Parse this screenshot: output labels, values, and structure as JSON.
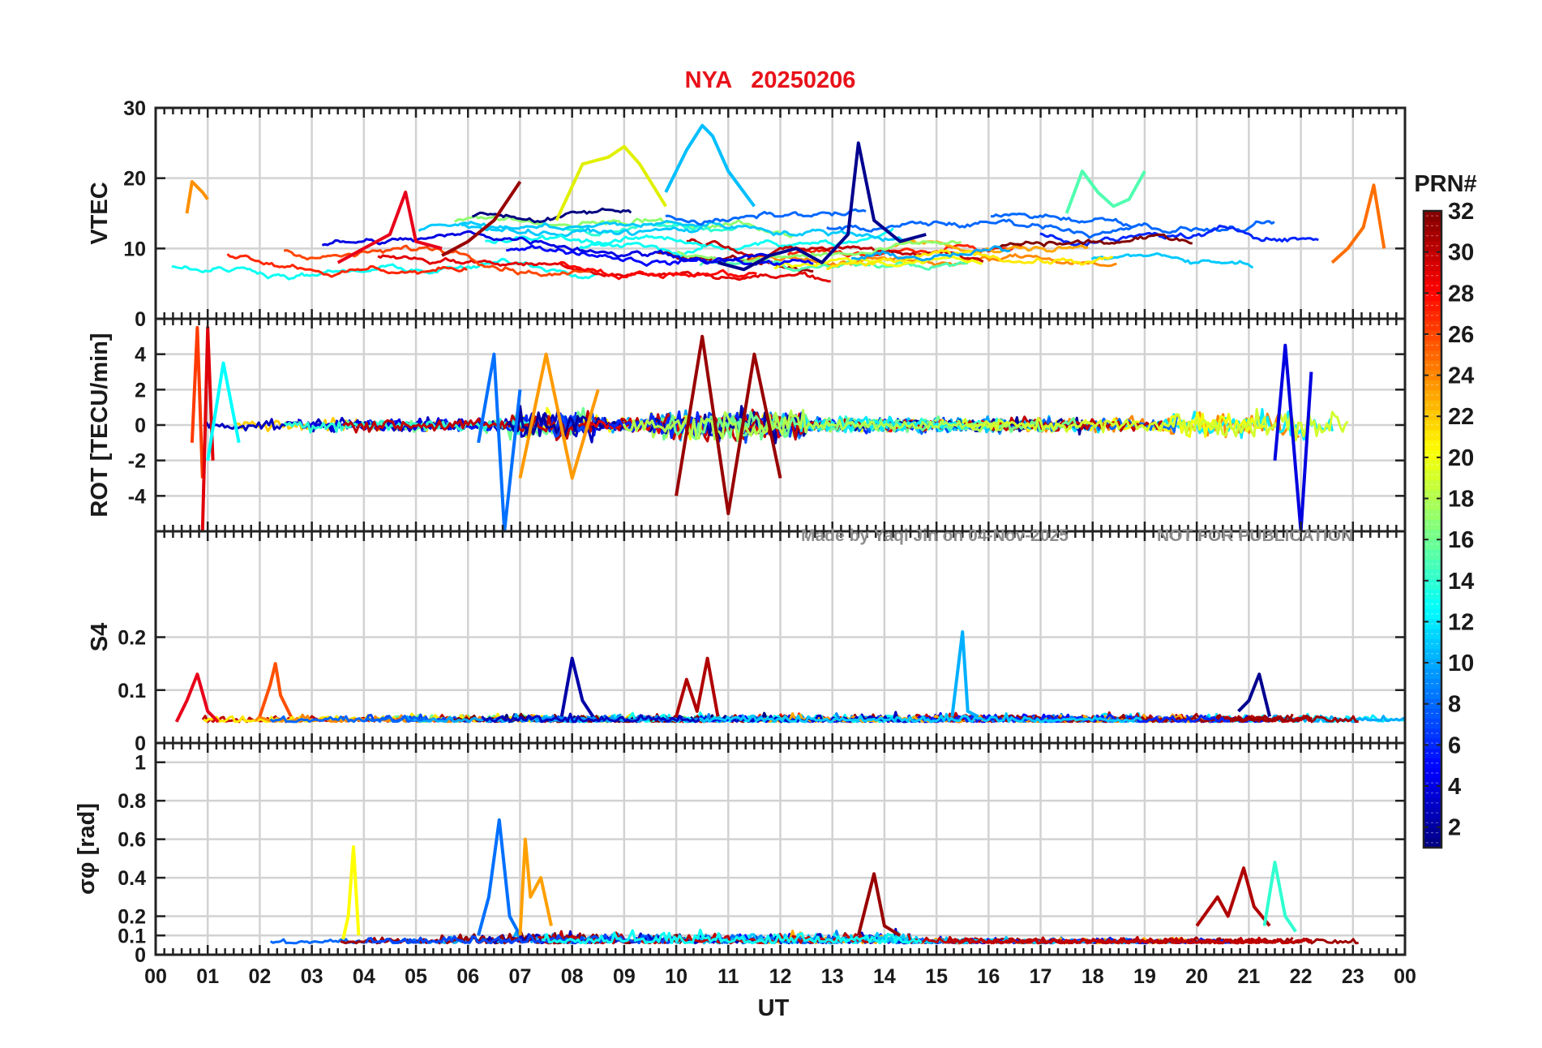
{
  "title": "NYA   20250206",
  "watermark": {
    "made_by": "Made by Yaqi Jin on 04-Nov-2025",
    "notice": "NOT FOR PUBLICATION"
  },
  "chart_data": {
    "type": "line",
    "title": "NYA   20250206",
    "xlabel": "UT",
    "xlim": [
      0,
      24
    ],
    "x_tick_labels": [
      "00",
      "01",
      "02",
      "03",
      "04",
      "05",
      "06",
      "07",
      "08",
      "09",
      "10",
      "11",
      "12",
      "13",
      "14",
      "15",
      "16",
      "17",
      "18",
      "19",
      "20",
      "21",
      "22",
      "23",
      "00"
    ],
    "grid": true,
    "colormap": "jet",
    "colorbar": {
      "label": "PRN#",
      "range": [
        1,
        32
      ],
      "tick_labels": [
        "2",
        "4",
        "6",
        "8",
        "10",
        "12",
        "14",
        "16",
        "18",
        "20",
        "22",
        "24",
        "26",
        "28",
        "30",
        "32"
      ],
      "placement": "right"
    },
    "series_color_by": "PRN",
    "panels": [
      {
        "id": "vtec",
        "ylabel": "VTEC",
        "ylim": [
          0,
          30
        ],
        "y_tick_labels": [
          "0",
          "10",
          "20",
          "30"
        ],
        "series": [
          {
            "prn": 1,
            "color": "#00008f",
            "x": [
              10.8,
              11.3,
              11.8,
              12.3,
              12.8,
              13.3,
              13.5,
              13.8,
              14.3,
              14.8
            ],
            "y": [
              8,
              7,
              9,
              10,
              8,
              12,
              25,
              14,
              11,
              12
            ]
          },
          {
            "prn": 9,
            "color": "#00bfff",
            "x": [
              9.8,
              10.2,
              10.5,
              10.7,
              11.0,
              11.5
            ],
            "y": [
              18,
              24,
              27.5,
              26,
              21,
              16
            ]
          },
          {
            "prn": 19,
            "color": "#e0f000",
            "x": [
              7.7,
              8.2,
              8.7,
              9.0,
              9.3,
              9.8
            ],
            "y": [
              14,
              22,
              23,
              24.5,
              22,
              16
            ]
          },
          {
            "prn": 23,
            "color": "#ff9000",
            "x": [
              0.6,
              0.7,
              0.9,
              1.0
            ],
            "y": [
              15,
              19.5,
              18,
              17
            ]
          },
          {
            "prn": 27,
            "color": "#e8001a",
            "x": [
              3.5,
              4.0,
              4.5,
              4.8,
              5.0,
              5.5
            ],
            "y": [
              8,
              10,
              12,
              18,
              11,
              10
            ]
          },
          {
            "prn": 31,
            "color": "#990000",
            "x": [
              5.5,
              6.0,
              6.5,
              7.0
            ],
            "y": [
              9,
              11,
              14,
              19.5
            ]
          },
          {
            "prn": 15,
            "color": "#50ffb0",
            "x": [
              17.5,
              17.8,
              18.1,
              18.4,
              18.7,
              19.0
            ],
            "y": [
              15,
              21,
              18,
              16,
              17,
              21
            ]
          },
          {
            "prn": 24,
            "color": "#ff6e00",
            "x": [
              22.6,
              22.9,
              23.2,
              23.4,
              23.6
            ],
            "y": [
              8,
              10,
              13,
              19,
              10
            ]
          }
        ]
      },
      {
        "id": "rot",
        "ylabel": "ROT [TECU/min]",
        "ylim": [
          -6,
          6
        ],
        "y_tick_labels": [
          "-4",
          "-2",
          "0",
          "2",
          "4"
        ],
        "series": [
          {
            "prn": 26,
            "color": "#ff3a00",
            "x": [
              0.7,
              0.8,
              0.9
            ],
            "y": [
              -1,
              5.5,
              -3
            ]
          },
          {
            "prn": 28,
            "color": "#e0000a",
            "x": [
              0.9,
              1.0,
              1.1
            ],
            "y": [
              -6,
              5.5,
              -2
            ]
          },
          {
            "prn": 11,
            "color": "#00ffff",
            "x": [
              1.0,
              1.3,
              1.6
            ],
            "y": [
              -2,
              3.5,
              -1
            ]
          },
          {
            "prn": 22,
            "color": "#ff9a00",
            "x": [
              7.0,
              7.5,
              8.0,
              8.5
            ],
            "y": [
              -3,
              4,
              -3,
              2
            ]
          },
          {
            "prn": 31,
            "color": "#990000",
            "x": [
              10.0,
              10.5,
              11.0,
              11.5,
              12.0
            ],
            "y": [
              -4,
              5,
              -5,
              4,
              -3
            ]
          },
          {
            "prn": 8,
            "color": "#0070ff",
            "x": [
              6.2,
              6.5,
              6.7,
              7.0
            ],
            "y": [
              -1,
              4,
              -6,
              2
            ]
          },
          {
            "prn": 4,
            "color": "#0000e0",
            "x": [
              21.5,
              21.7,
              22.0,
              22.2
            ],
            "y": [
              -2,
              4.5,
              -6,
              3
            ]
          }
        ]
      },
      {
        "id": "s4",
        "ylabel": "S4",
        "ylim": [
          0,
          0.4
        ],
        "y_tick_labels": [
          "0",
          "0.1",
          "0.2"
        ],
        "series": [
          {
            "prn": 27,
            "color": "#e8001a",
            "x": [
              0.4,
              0.6,
              0.8,
              1.0,
              1.2
            ],
            "y": [
              0.04,
              0.08,
              0.13,
              0.06,
              0.04
            ]
          },
          {
            "prn": 25,
            "color": "#ff5000",
            "x": [
              2.0,
              2.2,
              2.3,
              2.4,
              2.6
            ],
            "y": [
              0.05,
              0.11,
              0.15,
              0.09,
              0.05
            ]
          },
          {
            "prn": 3,
            "color": "#0000a8",
            "x": [
              7.8,
              8.0,
              8.2,
              8.4
            ],
            "y": [
              0.05,
              0.16,
              0.08,
              0.05
            ]
          },
          {
            "prn": 9,
            "color": "#00b0ff",
            "x": [
              15.3,
              15.5,
              15.6,
              15.8
            ],
            "y": [
              0.05,
              0.21,
              0.06,
              0.05
            ]
          },
          {
            "prn": 2,
            "color": "#000090",
            "x": [
              20.8,
              21.0,
              21.2,
              21.4
            ],
            "y": [
              0.06,
              0.08,
              0.13,
              0.05
            ]
          },
          {
            "prn": 30,
            "color": "#b00000",
            "x": [
              10.0,
              10.2,
              10.4,
              10.6,
              10.8
            ],
            "y": [
              0.05,
              0.12,
              0.06,
              0.16,
              0.05
            ]
          }
        ]
      },
      {
        "id": "sigma_phi",
        "ylabel": "σφ [rad]",
        "ylim": [
          0,
          1.1
        ],
        "y_tick_labels": [
          "0",
          "0.1",
          "0.2",
          "0.4",
          "0.6",
          "0.8",
          "1"
        ],
        "series": [
          {
            "prn": 8,
            "color": "#0070ff",
            "x": [
              6.2,
              6.4,
              6.6,
              6.8,
              7.0
            ],
            "y": [
              0.1,
              0.3,
              0.7,
              0.2,
              0.1
            ]
          },
          {
            "prn": 19,
            "color": "#ffff00",
            "x": [
              3.6,
              3.7,
              3.8,
              3.9
            ],
            "y": [
              0.08,
              0.2,
              0.56,
              0.1
            ]
          },
          {
            "prn": 22,
            "color": "#ffa000",
            "x": [
              7.0,
              7.1,
              7.2,
              7.4,
              7.6
            ],
            "y": [
              0.1,
              0.6,
              0.3,
              0.4,
              0.15
            ]
          },
          {
            "prn": 31,
            "color": "#990000",
            "x": [
              13.5,
              13.8,
              14.0,
              14.3
            ],
            "y": [
              0.1,
              0.42,
              0.15,
              0.1
            ]
          },
          {
            "prn": 30,
            "color": "#b00000",
            "x": [
              20.0,
              20.4,
              20.6,
              20.9,
              21.1,
              21.4
            ],
            "y": [
              0.15,
              0.3,
              0.2,
              0.45,
              0.25,
              0.15
            ]
          },
          {
            "prn": 14,
            "color": "#30ffd0",
            "x": [
              21.3,
              21.5,
              21.7,
              21.9
            ],
            "y": [
              0.15,
              0.48,
              0.2,
              0.12
            ]
          }
        ]
      }
    ]
  }
}
